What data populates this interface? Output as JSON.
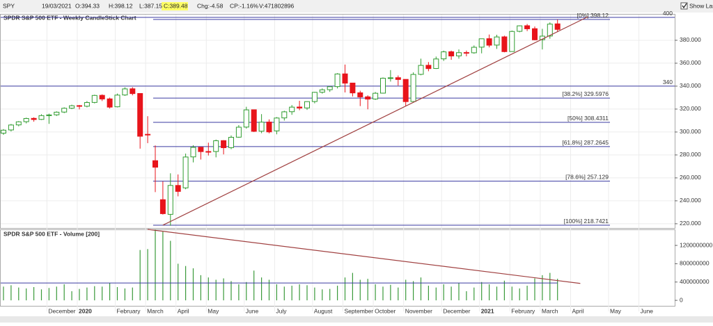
{
  "toolbar": {
    "symbol": "SPY",
    "date": "19/03/2021",
    "open": "O:394.33",
    "high": "H:398.12",
    "low": "L:387.15",
    "close": "C:389.48",
    "change": "Chg:-4.58",
    "change_pct": "CP:-1.16%",
    "volume": "V:471802896",
    "show_last": "Show Last"
  },
  "chart_data": [
    {
      "type": "candlestick",
      "title": "SPDR S&P 500 ETF - Weekly CandleStick Chart",
      "categories": [
        null,
        null,
        null,
        null,
        null,
        null,
        "December",
        null,
        null,
        null,
        "2020",
        null,
        null,
        null,
        null,
        "February",
        null,
        null,
        null,
        "March",
        null,
        null,
        null,
        "April",
        null,
        null,
        null,
        "May",
        null,
        null,
        null,
        null,
        "June",
        null,
        null,
        null,
        "July",
        null,
        null,
        null,
        null,
        "August",
        null,
        null,
        null,
        "September",
        null,
        null,
        null,
        "October",
        null,
        null,
        null,
        "November",
        null,
        null,
        null,
        null,
        "December",
        null,
        null,
        null,
        null,
        "2021",
        null,
        null,
        null,
        "February",
        null,
        null,
        null,
        "March",
        null,
        null,
        null,
        "April",
        null,
        null,
        null,
        null,
        "May",
        null,
        null,
        null,
        "June",
        null
      ],
      "bold_categories": [
        "2020",
        "2021"
      ],
      "open": [
        299.0,
        301.8,
        306.2,
        309.0,
        311.9,
        311.0,
        314.5,
        315.0,
        317.4,
        320.8,
        323.0,
        322.5,
        325.8,
        332.0,
        328.9,
        322.0,
        332.3,
        337.7,
        333.6,
        298.0,
        275.0,
        241.0,
        228.2,
        253.4,
        251.3,
        278.3,
        286.7,
        283.0,
        283.0,
        292.5,
        286.4,
        295.5,
        304.3,
        319.4,
        300.7,
        308.7,
        301.0,
        312.3,
        317.7,
        321.8,
        321.0,
        326.6,
        334.7,
        336.9,
        339.6,
        350.7,
        342.7,
        334.2,
        330.7,
        328.8,
        333.9,
        347.0,
        347.4,
        345.9,
        326.6,
        350.3,
        358.2,
        355.4,
        363.8,
        370.0,
        366.4,
        369.3,
        369.1,
        374.0,
        381.4,
        375.8,
        383.0,
        370.2,
        387.8,
        392.7,
        390.1,
        380.5,
        383.7,
        394.33,
        null,
        null,
        null,
        null,
        null,
        null,
        null,
        null,
        null,
        null,
        null,
        null
      ],
      "high": [
        302.5,
        307.0,
        309.5,
        312.5,
        312.8,
        315.5,
        316.0,
        318.0,
        321.5,
        323.8,
        323.6,
        327.0,
        332.5,
        332.8,
        330.0,
        333.5,
        339.0,
        339.1,
        333.7,
        313.8,
        288.3,
        256.9,
        264.0,
        263.0,
        281.2,
        288.4,
        287.0,
        290.7,
        293.4,
        292.9,
        297.0,
        306.0,
        322.0,
        318.7,
        315.6,
        311.0,
        313.0,
        318.5,
        323.5,
        327.2,
        326.8,
        335.0,
        338.0,
        339.6,
        351.3,
        358.8,
        342.9,
        336.0,
        332.0,
        334.9,
        347.5,
        354.0,
        349.3,
        346.0,
        352.0,
        364.0,
        361.0,
        365.8,
        371.0,
        371.0,
        372.0,
        371.0,
        375.5,
        381.5,
        385.0,
        384.8,
        384.0,
        388.5,
        393.0,
        394.2,
        392.0,
        390.0,
        395.6,
        398.12,
        null,
        null,
        null,
        null,
        null,
        null,
        null,
        null,
        null,
        null,
        null,
        null
      ],
      "low": [
        297.5,
        300.5,
        305.0,
        307.5,
        309.0,
        310.5,
        307.1,
        314.0,
        316.5,
        320.0,
        319.7,
        321.5,
        325.0,
        327.0,
        320.5,
        321.5,
        331.5,
        332.0,
        285.5,
        290.3,
        247.6,
        228.0,
        218.3,
        243.9,
        250.1,
        273.5,
        276.0,
        279.5,
        277.9,
        280.5,
        285.0,
        295.0,
        303.0,
        300.0,
        299.0,
        298.9,
        298.0,
        310.0,
        315.0,
        319.0,
        319.3,
        325.0,
        333.5,
        335.0,
        338.0,
        334.5,
        331.0,
        322.6,
        319.8,
        328.0,
        333.5,
        344.0,
        340.5,
        322.6,
        326.6,
        349.5,
        353.0,
        355.0,
        362.0,
        363.0,
        364.0,
        366.0,
        368.3,
        368.6,
        373.8,
        372.5,
        369.5,
        370.0,
        387.0,
        388.0,
        380.0,
        372.0,
        381.4,
        387.15,
        null,
        null,
        null,
        null,
        null,
        null,
        null,
        null,
        null,
        null,
        null,
        null
      ],
      "close": [
        301.6,
        306.1,
        308.9,
        311.8,
        310.9,
        314.3,
        314.9,
        317.3,
        320.7,
        322.9,
        322.4,
        325.7,
        331.9,
        328.8,
        321.7,
        332.2,
        337.6,
        333.5,
        296.3,
        297.5,
        269.3,
        228.8,
        253.4,
        248.2,
        278.2,
        286.6,
        282.9,
        282.8,
        292.4,
        286.3,
        295.4,
        304.2,
        319.3,
        300.6,
        308.6,
        300.1,
        312.2,
        317.6,
        321.7,
        320.9,
        326.5,
        334.6,
        336.8,
        339.5,
        350.6,
        342.6,
        334.1,
        330.6,
        328.7,
        333.8,
        346.9,
        347.3,
        345.8,
        326.5,
        350.2,
        358.1,
        355.3,
        363.7,
        369.9,
        366.3,
        369.2,
        369.0,
        373.9,
        381.3,
        375.7,
        382.9,
        370.1,
        387.7,
        392.6,
        390.0,
        380.4,
        383.6,
        394.1,
        389.48,
        null,
        null,
        null,
        null,
        null,
        null,
        null,
        null,
        null,
        null,
        null,
        null
      ],
      "up_color": "#2f9c2f",
      "down_color": "#e8141b",
      "ylim": [
        216.3,
        403
      ],
      "yticks": [
        {
          "value": 220,
          "label": "220.000"
        },
        {
          "value": 240,
          "label": "240.000"
        },
        {
          "value": 260,
          "label": "260.000"
        },
        {
          "value": 280,
          "label": "280.000"
        },
        {
          "value": 300,
          "label": "300.000"
        },
        {
          "value": 320,
          "label": "320.000"
        },
        {
          "value": 340,
          "label": "340.000"
        },
        {
          "value": 360,
          "label": "360.000"
        },
        {
          "value": 380,
          "label": "380.000"
        }
      ],
      "grid": true,
      "hlines": [
        400,
        340
      ],
      "fib_levels": [
        {
          "level": "[0%]",
          "value": 398.12
        },
        {
          "level": "[38.2%]",
          "value": 329.5976
        },
        {
          "level": "[50%]",
          "value": 308.4311
        },
        {
          "level": "[61.8%]",
          "value": 287.2645
        },
        {
          "level": "[78.6%]",
          "value": 257.129
        },
        {
          "level": "[100%]",
          "value": 218.7421
        }
      ],
      "fib_color": "#3a3aa0",
      "trendline": {
        "from": [
          21,
          218.74
        ],
        "to": [
          77,
          400.5
        ],
        "color": "#a04040"
      }
    },
    {
      "type": "bar",
      "title": "SPDR S&P 500 ETF - Volume [200]",
      "values": [
        300000000,
        330000000,
        280000000,
        260000000,
        290000000,
        240000000,
        270000000,
        300000000,
        350000000,
        200000000,
        250000000,
        280000000,
        310000000,
        300000000,
        380000000,
        290000000,
        260000000,
        280000000,
        1100000000,
        1120000000,
        1550000000,
        1500000000,
        1300000000,
        800000000,
        750000000,
        700000000,
        550000000,
        500000000,
        450000000,
        480000000,
        420000000,
        350000000,
        400000000,
        650000000,
        500000000,
        450000000,
        350000000,
        300000000,
        320000000,
        350000000,
        330000000,
        280000000,
        240000000,
        250000000,
        320000000,
        500000000,
        600000000,
        450000000,
        470000000,
        350000000,
        300000000,
        340000000,
        280000000,
        450000000,
        420000000,
        500000000,
        320000000,
        280000000,
        350000000,
        300000000,
        380000000,
        200000000,
        280000000,
        400000000,
        350000000,
        300000000,
        430000000,
        300000000,
        260000000,
        320000000,
        480000000,
        550000000,
        600000000,
        471802896,
        null,
        null,
        null,
        null,
        null,
        null,
        null,
        null,
        null,
        null,
        null,
        null
      ],
      "color": "#3a9a3a",
      "ylim": [
        -120000000,
        1550000000
      ],
      "yticks": [
        0,
        400000000,
        800000000,
        1200000000
      ],
      "moving_average": 380000000,
      "moving_average_color": "#3a3aa0",
      "trendline": {
        "from": [
          19,
          1550000000
        ],
        "to": [
          76,
          370000000
        ],
        "color": "#a04040"
      }
    }
  ]
}
